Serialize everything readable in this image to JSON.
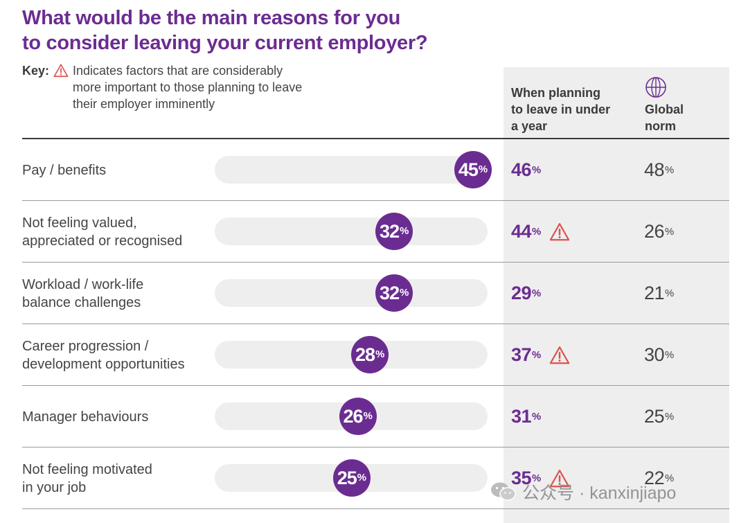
{
  "title_line1": "What would be the main reasons for you",
  "title_line2": "to consider leaving your current employer?",
  "key": {
    "label": "Key:",
    "icon": "warning-triangle-icon",
    "text_line1": "Indicates factors that are considerably",
    "text_line2": "more important to those planning to leave",
    "text_line3": "their employer imminently"
  },
  "columns": {
    "plan_line1": "When planning",
    "plan_line2": "to leave in under",
    "plan_line3": "a year",
    "global_icon": "globe-icon",
    "global_line1": "Global",
    "global_line2": "norm"
  },
  "colors": {
    "accent": "#6b2c91",
    "track": "#eeeeee",
    "warning": "#d9534f"
  },
  "watermark": {
    "icon": "wechat-icon",
    "text": "公众号 · kanxinjiapo"
  },
  "chart_data": {
    "type": "bar",
    "categories": [
      "Pay / benefits",
      "Not feeling valued, appreciated or recognised",
      "Workload / work-life balance challenges",
      "Career progression / development opportunities",
      "Manager behaviours",
      "Not feeling motivated in your job"
    ],
    "values": [
      45,
      32,
      32,
      28,
      26,
      25
    ],
    "ylim": [
      0,
      45
    ],
    "plan_values": [
      46,
      44,
      29,
      37,
      31,
      35
    ],
    "global_values": [
      48,
      26,
      21,
      30,
      25,
      22
    ],
    "flags": [
      false,
      true,
      false,
      true,
      false,
      true
    ],
    "rows": [
      {
        "line1": "Pay / benefits",
        "line2": "",
        "value": "45",
        "plan": "46",
        "global": "48",
        "flag": false
      },
      {
        "line1": "Not feeling valued,",
        "line2": "appreciated or recognised",
        "value": "32",
        "plan": "44",
        "global": "26",
        "flag": true
      },
      {
        "line1": "Workload / work-life",
        "line2": "balance challenges",
        "value": "32",
        "plan": "29",
        "global": "21",
        "flag": false
      },
      {
        "line1": "Career progression /",
        "line2": "development opportunities",
        "value": "28",
        "plan": "37",
        "global": "30",
        "flag": true
      },
      {
        "line1": "Manager behaviours",
        "line2": "",
        "value": "26",
        "plan": "31",
        "global": "25",
        "flag": false
      },
      {
        "line1": "Not feeling motivated",
        "line2": "in your job",
        "value": "25",
        "plan": "35",
        "global": "22",
        "flag": true
      }
    ],
    "unit": "%"
  }
}
